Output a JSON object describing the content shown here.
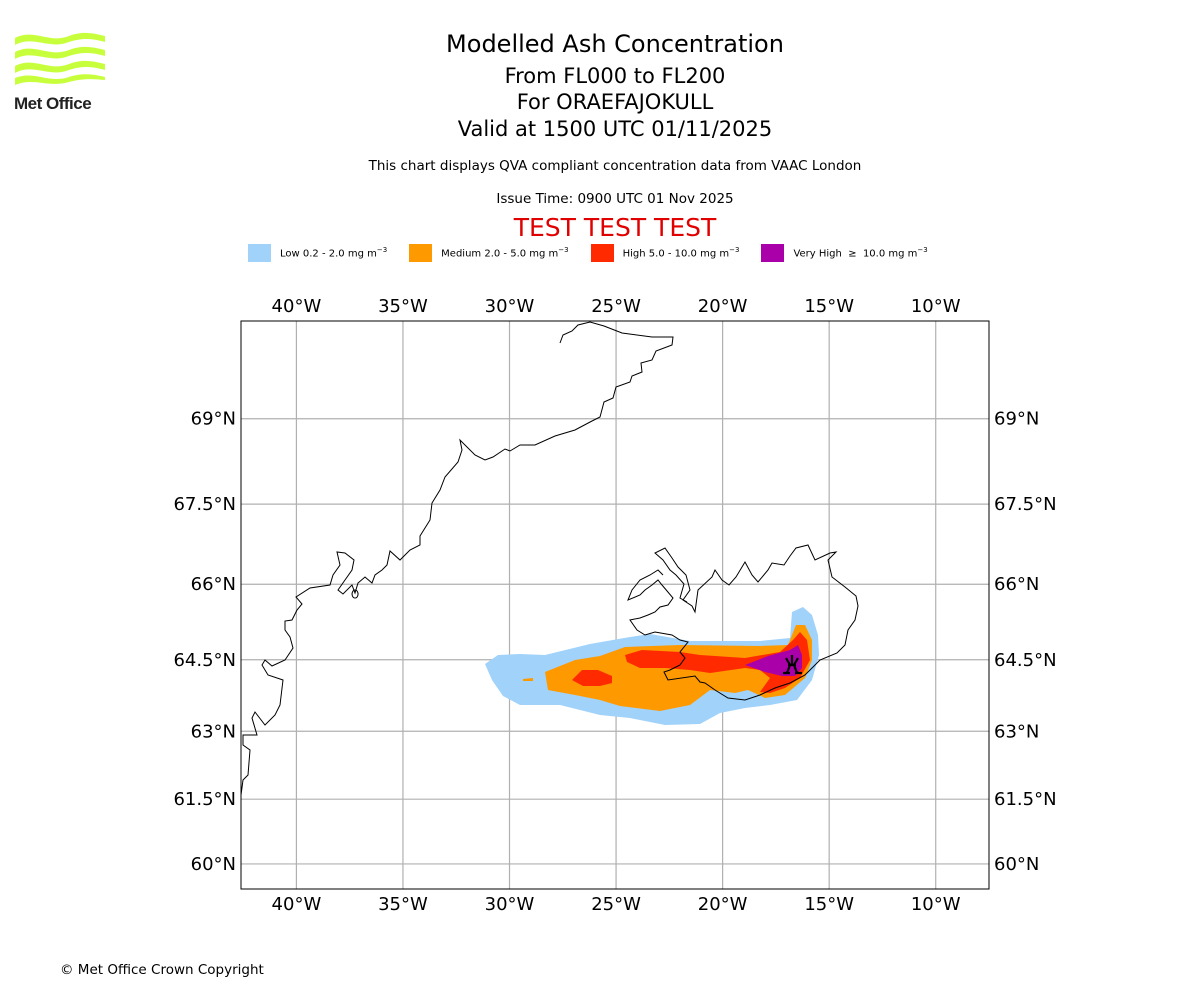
{
  "logo": {
    "text": "Met Office",
    "color": "#c8ff3c"
  },
  "header": {
    "title": "Modelled Ash Concentration",
    "levels": "From FL000 to FL200",
    "volcano": "For ORAEFAJOKULL",
    "valid": "Valid at 1500 UTC 01/11/2025",
    "subtitle": "This chart displays QVA compliant concentration data from VAAC London",
    "issue": "Issue Time: 0900 UTC 01 Nov 2025",
    "test_banner": "TEST TEST TEST"
  },
  "legend": [
    {
      "label": "Low 0.2 - 2.0 mg m",
      "sup": "−3",
      "color": "#a0d2fa"
    },
    {
      "label": "Medium 2.0 - 5.0 mg m",
      "sup": "−3",
      "color": "#ff9900"
    },
    {
      "label": "High 5.0 - 10.0 mg m",
      "sup": "−3",
      "color": "#ff2a00"
    },
    {
      "label": "Very High  ≥  10.0 mg m",
      "sup": "−3",
      "color": "#aa00aa"
    }
  ],
  "map": {
    "lon_range": [
      -42.6,
      -7.5
    ],
    "lat_range": [
      59.4,
      70.6
    ],
    "lon_ticks": [
      -40,
      -35,
      -30,
      -25,
      -20,
      -15,
      -10
    ],
    "lon_labels": [
      "40°W",
      "35°W",
      "30°W",
      "25°W",
      "20°W",
      "15°W",
      "10°W"
    ],
    "lat_ticks": [
      69,
      67.5,
      66,
      64.5,
      63,
      61.5,
      60
    ],
    "lat_labels": [
      "69°N",
      "67.5°N",
      "66°N",
      "64.5°N",
      "63°N",
      "61.5°N",
      "60°N"
    ],
    "volcano_marker": {
      "name": "Oraefajokull",
      "lon": -16.6,
      "lat": 64.0
    }
  },
  "footer": {
    "copyright": "© Met Office Crown Copyright"
  }
}
